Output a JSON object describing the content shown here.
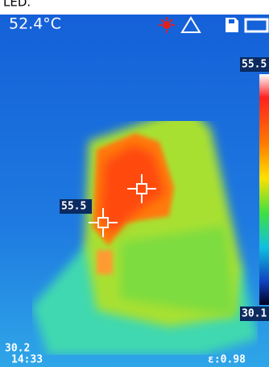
{
  "header": {
    "caption": "LED.",
    "temperature": "52.4°C"
  },
  "scale": {
    "max": "55.5",
    "min": "30.1"
  },
  "spot": {
    "label": "55.5"
  },
  "footer": {
    "min_reading": "30.2",
    "time": "14:33",
    "emissivity": "ε:0.98"
  }
}
